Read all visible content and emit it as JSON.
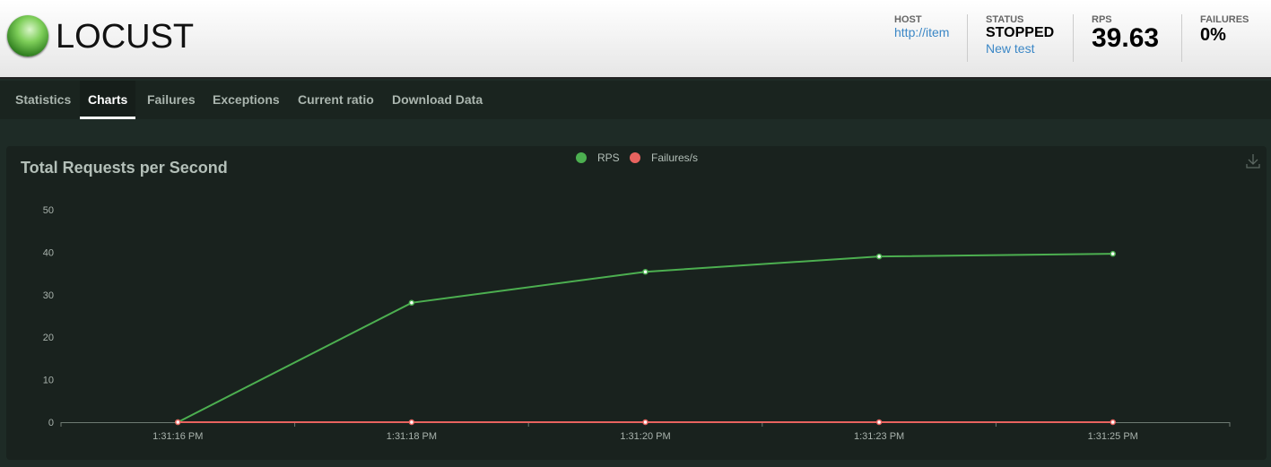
{
  "header": {
    "logo_text": "LOCUST",
    "host": {
      "label": "HOST",
      "value": "http://item"
    },
    "status": {
      "label": "STATUS",
      "value": "STOPPED",
      "action": "New test"
    },
    "rps": {
      "label": "RPS",
      "value": "39.63"
    },
    "failures": {
      "label": "FAILURES",
      "value": "0%"
    }
  },
  "nav": {
    "tabs": [
      {
        "label": "Statistics"
      },
      {
        "label": "Charts",
        "active": true
      },
      {
        "label": "Failures"
      },
      {
        "label": "Exceptions"
      },
      {
        "label": "Current ratio"
      },
      {
        "label": "Download Data"
      }
    ]
  },
  "chart_data": {
    "type": "line",
    "title": "Total Requests per Second",
    "categories": [
      "1:31:16 PM",
      "1:31:18 PM",
      "1:31:20 PM",
      "1:31:23 PM",
      "1:31:25 PM"
    ],
    "series": [
      {
        "name": "RPS",
        "color": "#4caf50",
        "values": [
          0,
          28.1,
          35.4,
          39.0,
          39.63
        ]
      },
      {
        "name": "Failures/s",
        "color": "#e8635f",
        "values": [
          0,
          0,
          0,
          0,
          0
        ]
      }
    ],
    "yticks": [
      0,
      10,
      20,
      30,
      40,
      50
    ],
    "ylim": [
      0,
      50
    ],
    "legend": "top-center",
    "grid": false
  },
  "icons": {
    "download": "download-icon"
  }
}
